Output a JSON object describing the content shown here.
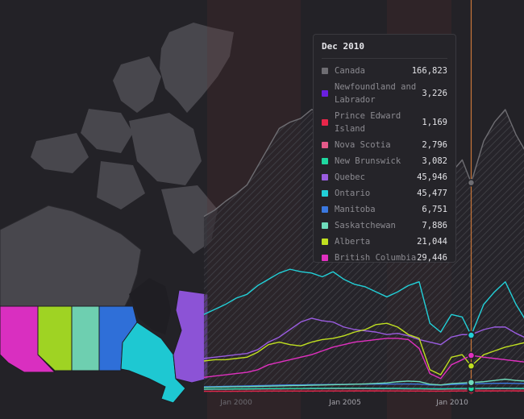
{
  "tooltip": {
    "title": "Dec 2010",
    "rows": [
      {
        "name": "Canada",
        "value": "166,823",
        "color": "#6e6d72"
      },
      {
        "name": "Newfoundland and Labrador",
        "value": "3,226",
        "color": "#6a1fe0"
      },
      {
        "name": "Prince Edward Island",
        "value": "1,169",
        "color": "#e8264a"
      },
      {
        "name": "Nova Scotia",
        "value": "2,796",
        "color": "#e55a8a"
      },
      {
        "name": "New Brunswick",
        "value": "3,082",
        "color": "#1fd8a0"
      },
      {
        "name": "Quebec",
        "value": "45,946",
        "color": "#9a5ce0"
      },
      {
        "name": "Ontario",
        "value": "45,477",
        "color": "#22d0d8"
      },
      {
        "name": "Manitoba",
        "value": "6,751",
        "color": "#3a78e0"
      },
      {
        "name": "Saskatchewan",
        "value": "7,886",
        "color": "#6fdcbc"
      },
      {
        "name": "Alberta",
        "value": "21,044",
        "color": "#c0e020"
      },
      {
        "name": "British Columbia",
        "value": "29,446",
        "color": "#e030c0"
      }
    ]
  },
  "chart_data": {
    "type": "line",
    "x": [
      "1998-07",
      "1999-01",
      "1999-07",
      "2000-01",
      "2000-07",
      "2001-01",
      "2001-07",
      "2002-01",
      "2002-07",
      "2003-01",
      "2003-07",
      "2004-01",
      "2004-07",
      "2005-01",
      "2005-07",
      "2006-01",
      "2006-07",
      "2007-01",
      "2007-07",
      "2008-01",
      "2008-07",
      "2009-01",
      "2009-07",
      "2010-01",
      "2010-07",
      "2010-12",
      "2011-07",
      "2012-01",
      "2012-07",
      "2013-01",
      "2013-07"
    ],
    "x_ticks": [
      "Jan 2000",
      "Jan 2005",
      "Jan 2010"
    ],
    "ylim": [
      0,
      260000
    ],
    "shaded_periods": [
      [
        "1998-07",
        "2003-01"
      ],
      [
        "2007-01",
        "2010-01"
      ]
    ],
    "cursor": "2010-12",
    "series": [
      {
        "name": "Canada",
        "color": "#6e6d72",
        "values": [
          140000,
          145000,
          152000,
          158000,
          165000,
          180000,
          195000,
          210000,
          215000,
          218000,
          225000,
          224000,
          232000,
          226000,
          224000,
          225000,
          224000,
          220000,
          222000,
          219000,
          208000,
          150000,
          135000,
          175000,
          185000,
          166823,
          200000,
          215000,
          225000,
          205000,
          190000
        ]
      },
      {
        "name": "Newfoundland and Labrador",
        "color": "#6a1fe0",
        "values": [
          2500,
          2600,
          2600,
          2700,
          2800,
          2900,
          3000,
          3000,
          3100,
          3100,
          3200,
          3200,
          3300,
          3300,
          3300,
          3400,
          3300,
          3300,
          3200,
          3200,
          3100,
          3000,
          3000,
          3100,
          3200,
          3226,
          3300,
          3400,
          3400,
          3300,
          3200
        ]
      },
      {
        "name": "Prince Edward Island",
        "color": "#e8264a",
        "values": [
          900,
          900,
          950,
          950,
          1000,
          1000,
          1050,
          1050,
          1100,
          1100,
          1100,
          1150,
          1150,
          1150,
          1200,
          1200,
          1200,
          1150,
          1150,
          1100,
          1100,
          1000,
          1000,
          1100,
          1150,
          1169,
          1200,
          1200,
          1250,
          1200,
          1150
        ]
      },
      {
        "name": "Nova Scotia",
        "color": "#e55a8a",
        "values": [
          2400,
          2500,
          2500,
          2600,
          2600,
          2700,
          2800,
          2800,
          2900,
          2900,
          3000,
          3000,
          3000,
          3100,
          3000,
          3000,
          2900,
          2900,
          2900,
          2800,
          2800,
          2600,
          2500,
          2700,
          2800,
          2796,
          2900,
          3000,
          3000,
          2900,
          2800
        ]
      },
      {
        "name": "New Brunswick",
        "color": "#1fd8a0",
        "values": [
          2600,
          2700,
          2700,
          2800,
          2800,
          2900,
          3000,
          3000,
          3100,
          3100,
          3200,
          3200,
          3300,
          3300,
          3300,
          3300,
          3200,
          3200,
          3200,
          3100,
          3100,
          2900,
          2800,
          3000,
          3100,
          3082,
          3200,
          3300,
          3300,
          3200,
          3100
        ]
      },
      {
        "name": "Quebec",
        "color": "#9a5ce0",
        "values": [
          27000,
          28000,
          29000,
          30000,
          31000,
          34000,
          40000,
          44000,
          50000,
          56000,
          59000,
          57000,
          56000,
          52000,
          50000,
          49000,
          48000,
          46000,
          47000,
          45000,
          42000,
          40000,
          38000,
          44000,
          46000,
          45946,
          50000,
          52000,
          52000,
          47000,
          43000
        ]
      },
      {
        "name": "Ontario",
        "color": "#22d0d8",
        "values": [
          62000,
          66000,
          70000,
          75000,
          78000,
          85000,
          90000,
          95000,
          98000,
          96000,
          95000,
          92000,
          96000,
          90000,
          86000,
          84000,
          80000,
          76000,
          80000,
          85000,
          88000,
          55000,
          48000,
          62000,
          60000,
          45477,
          70000,
          80000,
          88000,
          70000,
          56000
        ]
      },
      {
        "name": "Manitoba",
        "color": "#3a78e0",
        "values": [
          4500,
          4600,
          4800,
          5000,
          5200,
          5400,
          5600,
          5800,
          6000,
          6000,
          6200,
          6200,
          6400,
          6400,
          6500,
          6500,
          6600,
          6600,
          6700,
          6700,
          6600,
          6000,
          5800,
          6300,
          6600,
          6751,
          7000,
          7200,
          7300,
          7100,
          7000
        ]
      },
      {
        "name": "Saskatchewan",
        "color": "#6fdcbc",
        "values": [
          4000,
          4200,
          4300,
          4500,
          4600,
          4800,
          5000,
          5200,
          5400,
          5500,
          5700,
          5900,
          6100,
          6300,
          6500,
          6800,
          7200,
          7600,
          8500,
          9000,
          8600,
          6500,
          6000,
          7000,
          7500,
          7886,
          8500,
          9500,
          10500,
          9500,
          9000
        ]
      },
      {
        "name": "Alberta",
        "color": "#c0e020",
        "values": [
          25000,
          26000,
          26000,
          27000,
          28000,
          32000,
          38000,
          40000,
          38000,
          37000,
          40000,
          42000,
          43000,
          45000,
          48000,
          50000,
          54000,
          55000,
          52000,
          46000,
          43000,
          18000,
          14000,
          28000,
          30000,
          21044,
          30000,
          33000,
          36000,
          38000,
          40000
        ]
      },
      {
        "name": "British Columbia",
        "color": "#e030c0",
        "values": [
          12000,
          13000,
          14000,
          15000,
          16000,
          18000,
          22000,
          24000,
          26000,
          28000,
          30000,
          33000,
          36000,
          38000,
          40000,
          41000,
          42000,
          43000,
          43000,
          42000,
          35000,
          15000,
          11000,
          22000,
          26000,
          29446,
          28000,
          27000,
          26000,
          25000,
          24000
        ]
      }
    ]
  }
}
